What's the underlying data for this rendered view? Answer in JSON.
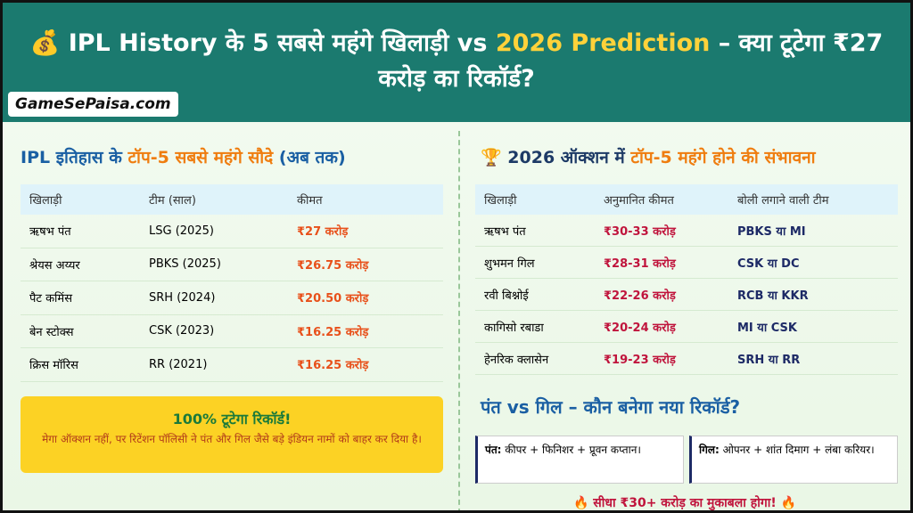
{
  "header": {
    "icon": "💰",
    "title_part1": "IPL History के 5 सबसे महंगे खिलाड़ी vs",
    "title_highlight": "2026 Prediction",
    "title_part2": "– क्या टूटेगा ₹27 करोड़ का रिकॉर्ड?",
    "logo": "GameSePaisa.com"
  },
  "left": {
    "heading_part1": "IPL इतिहास के",
    "heading_highlight": "टॉप-5 सबसे महंगे सौदे",
    "heading_part2": "(अब तक)",
    "table": {
      "columns": [
        "खिलाड़ी",
        "टीम (साल)",
        "कीमत"
      ],
      "rows": [
        [
          "ऋषभ पंत",
          "LSG (2025)",
          "₹27 करोड़"
        ],
        [
          "श्रेयस अय्यर",
          "PBKS (2025)",
          "₹26.75 करोड़"
        ],
        [
          "पैट कमिंस",
          "SRH (2024)",
          "₹20.50 करोड़"
        ],
        [
          "बेन स्टोक्स",
          "CSK (2023)",
          "₹16.25 करोड़"
        ],
        [
          "क्रिस मॉरिस",
          "RR (2021)",
          "₹16.25 करोड़"
        ]
      ]
    },
    "callout": {
      "title": "100% टूटेगा रिकॉर्ड!",
      "text": "मेगा ऑक्शन नहीं, पर रिटेंशन पॉलिसी ने पंत और गिल जैसे बड़े इंडियन नामों को बाहर कर दिया है।"
    }
  },
  "right": {
    "icon": "🏆",
    "heading_part1": "2026 ऑक्शन में",
    "heading_highlight": "टॉप-5 महंगे होने की संभावना",
    "table": {
      "columns": [
        "खिलाड़ी",
        "अनुमानित कीमत",
        "बोली लगाने वाली टीम"
      ],
      "rows": [
        [
          "ऋषभ पंत",
          "₹30-33 करोड़",
          "PBKS या MI"
        ],
        [
          "शुभमन गिल",
          "₹28-31 करोड़",
          "CSK या DC"
        ],
        [
          "रवी बिश्नोई",
          "₹22-26 करोड़",
          "RCB या KKR"
        ],
        [
          "कागिसो रबाडा",
          "₹20-24 करोड़",
          "MI या CSK"
        ],
        [
          "हेनरिक क्लासेन",
          "₹19-23 करोड़",
          "SRH या RR"
        ]
      ]
    },
    "subheading": "पंत vs गिल – कौन बनेगा नया रिकॉर्ड?",
    "compare": [
      {
        "label": "पंत:",
        "text": "कीपर + फिनिशर + प्रूवन कप्तान।"
      },
      {
        "label": "गिल:",
        "text": "ओपनर + शांत दिमाग + लंबा करियर।"
      }
    ],
    "footer": "🔥 सीधा ₹30+ करोड़ का मुकाबला होगा! 🔥"
  }
}
